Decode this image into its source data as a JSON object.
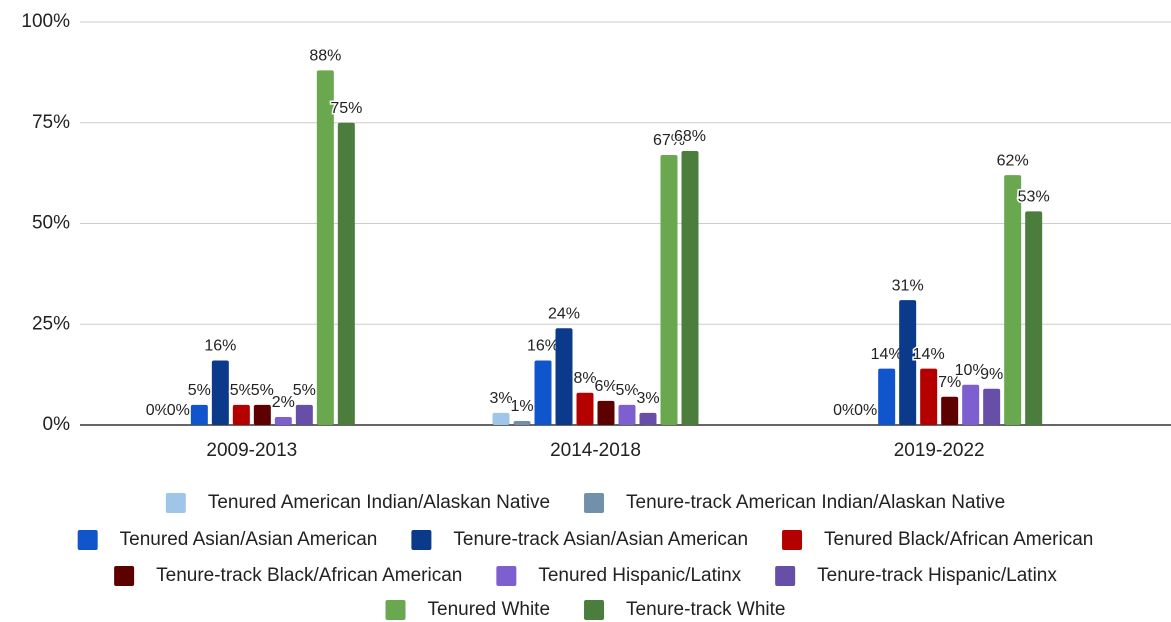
{
  "chart_data": {
    "type": "bar",
    "categories": [
      "2009-2013",
      "2014-2018",
      "2019-2022"
    ],
    "ylim": [
      0,
      100
    ],
    "yticks": [
      {
        "value": 0,
        "label": "0%"
      },
      {
        "value": 25,
        "label": "25%"
      },
      {
        "value": 50,
        "label": "50%"
      },
      {
        "value": 75,
        "label": "75%"
      },
      {
        "value": 100,
        "label": "100%"
      }
    ],
    "grid": true,
    "legend": "bottom",
    "series": [
      {
        "name": "Tenured American Indian/Alaskan Native",
        "color": "#9fc5e8",
        "values": [
          0,
          3,
          0
        ],
        "value_labels": [
          "0%",
          "3%",
          "0%"
        ]
      },
      {
        "name": "Tenure-track American Indian/Alaskan Native",
        "color": "#7390ab",
        "values": [
          0,
          1,
          0
        ],
        "value_labels": [
          "0%",
          "1%",
          "0%"
        ]
      },
      {
        "name": "Tenured Asian/Asian American",
        "color": "#1155cc",
        "values": [
          5,
          16,
          14
        ],
        "value_labels": [
          "5%",
          "16%",
          "14%"
        ]
      },
      {
        "name": "Tenure-track Asian/Asian American",
        "color": "#0b3a8a",
        "values": [
          16,
          24,
          31
        ],
        "value_labels": [
          "16%",
          "24%",
          "31%"
        ]
      },
      {
        "name": "Tenured Black/African American",
        "color": "#b50000",
        "values": [
          5,
          8,
          14
        ],
        "value_labels": [
          "5%",
          "8%",
          "14%"
        ]
      },
      {
        "name": "Tenure-track Black/African American",
        "color": "#5c0000",
        "values": [
          5,
          6,
          7
        ],
        "value_labels": [
          "5%",
          "6%",
          "7%"
        ]
      },
      {
        "name": "Tenured Hispanic/Latinx",
        "color": "#7e5fcf",
        "values": [
          2,
          5,
          10
        ],
        "value_labels": [
          "2%",
          "5%",
          "10%"
        ]
      },
      {
        "name": "Tenure-track Hispanic/Latinx",
        "color": "#674ea7",
        "values": [
          5,
          3,
          9
        ],
        "value_labels": [
          "5%",
          "3%",
          "9%"
        ]
      },
      {
        "name": "Tenured White",
        "color": "#6aa84f",
        "values": [
          88,
          67,
          62
        ],
        "value_labels": [
          "88%",
          "67%",
          "62%"
        ]
      },
      {
        "name": "Tenure-track White",
        "color": "#4b7d3c",
        "values": [
          75,
          68,
          53
        ],
        "value_labels": [
          "75%",
          "68%",
          "53%"
        ]
      }
    ]
  }
}
